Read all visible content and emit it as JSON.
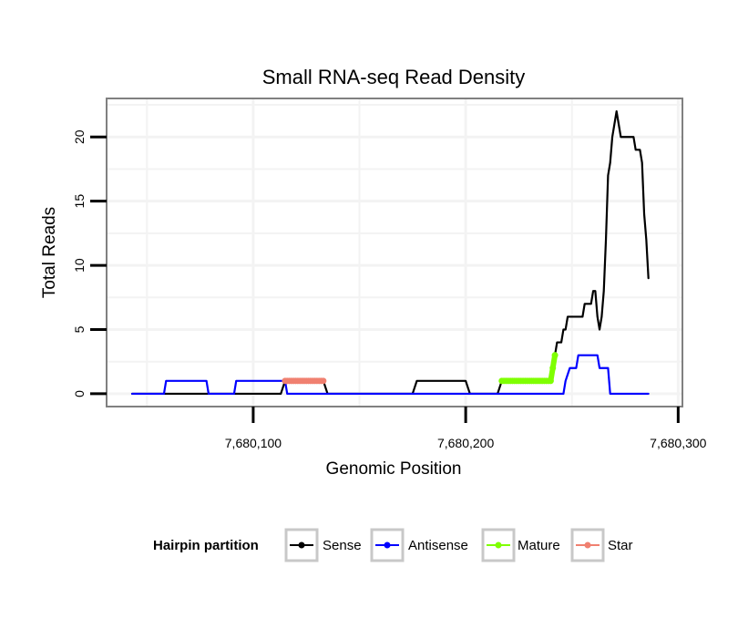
{
  "chart_data": {
    "type": "line",
    "title": "Small RNA-seq Read Density",
    "xlabel": "Genomic Position",
    "ylabel": "Total Reads",
    "xlim": [
      7680031,
      7680302
    ],
    "ylim": [
      -1,
      23
    ],
    "x_ticks": [
      7680100,
      7680200,
      7680300
    ],
    "x_tick_labels": [
      "7,680,100",
      "7,680,200",
      "7,680,300"
    ],
    "y_ticks": [
      0,
      5,
      10,
      15,
      20
    ],
    "y_tick_labels": [
      "0",
      "5",
      "10",
      "15",
      "20"
    ],
    "grid": true,
    "legend": {
      "title": "Hairpin partition",
      "position": "bottom",
      "entries": [
        "Sense",
        "Antisense",
        "Mature",
        "Star"
      ]
    },
    "series": [
      {
        "name": "Sense",
        "color": "#000000",
        "points": [
          [
            7680043,
            0
          ],
          [
            7680113,
            0
          ],
          [
            7680115,
            1
          ],
          [
            7680133,
            1
          ],
          [
            7680135,
            0
          ],
          [
            7680175,
            0
          ],
          [
            7680177,
            1
          ],
          [
            7680200,
            1
          ],
          [
            7680202,
            0
          ],
          [
            7680215,
            0
          ],
          [
            7680217,
            1
          ],
          [
            7680240,
            1
          ],
          [
            7680241,
            2
          ],
          [
            7680242,
            3
          ],
          [
            7680243,
            4
          ],
          [
            7680245,
            4
          ],
          [
            7680246,
            5
          ],
          [
            7680247,
            5
          ],
          [
            7680248,
            6
          ],
          [
            7680255,
            6
          ],
          [
            7680256,
            7
          ],
          [
            7680259,
            7
          ],
          [
            7680260,
            8
          ],
          [
            7680261,
            8
          ],
          [
            7680262,
            6
          ],
          [
            7680263,
            5
          ],
          [
            7680264,
            6
          ],
          [
            7680265,
            8
          ],
          [
            7680266,
            12
          ],
          [
            7680267,
            17
          ],
          [
            7680268,
            18
          ],
          [
            7680269,
            20
          ],
          [
            7680270,
            21
          ],
          [
            7680271,
            22
          ],
          [
            7680272,
            21
          ],
          [
            7680273,
            20
          ],
          [
            7680279,
            20
          ],
          [
            7680280,
            19
          ],
          [
            7680282,
            19
          ],
          [
            7680283,
            18
          ],
          [
            7680284,
            14
          ],
          [
            7680285,
            12
          ],
          [
            7680286,
            9
          ]
        ]
      },
      {
        "name": "Antisense",
        "color": "#0000ff",
        "points": [
          [
            7680043,
            0
          ],
          [
            7680058,
            0
          ],
          [
            7680059,
            1
          ],
          [
            7680078,
            1
          ],
          [
            7680079,
            0
          ],
          [
            7680091,
            0
          ],
          [
            7680092,
            1
          ],
          [
            7680115,
            1
          ],
          [
            7680116,
            0
          ],
          [
            7680246,
            0
          ],
          [
            7680247,
            1
          ],
          [
            7680249,
            2
          ],
          [
            7680252,
            2
          ],
          [
            7680253,
            3
          ],
          [
            7680262,
            3
          ],
          [
            7680263,
            2
          ],
          [
            7680267,
            2
          ],
          [
            7680268,
            0
          ],
          [
            7680286,
            0
          ]
        ]
      },
      {
        "name": "Mature",
        "color": "#7fff00",
        "points": [
          [
            7680217,
            1
          ],
          [
            7680218,
            1
          ],
          [
            7680219,
            1
          ],
          [
            7680220,
            1
          ],
          [
            7680221,
            1
          ],
          [
            7680222,
            1
          ],
          [
            7680223,
            1
          ],
          [
            7680224,
            1
          ],
          [
            7680225,
            1
          ],
          [
            7680226,
            1
          ],
          [
            7680227,
            1
          ],
          [
            7680228,
            1
          ],
          [
            7680229,
            1
          ],
          [
            7680230,
            1
          ],
          [
            7680231,
            1
          ],
          [
            7680232,
            1
          ],
          [
            7680233,
            1
          ],
          [
            7680234,
            1
          ],
          [
            7680235,
            1
          ],
          [
            7680236,
            1
          ],
          [
            7680237,
            1
          ],
          [
            7680238,
            1
          ],
          [
            7680239,
            1
          ],
          [
            7680240,
            1
          ],
          [
            7680241,
            2
          ],
          [
            7680242,
            3
          ]
        ]
      },
      {
        "name": "Star",
        "color": "#f08070",
        "points": [
          [
            7680115,
            1
          ],
          [
            7680116,
            1
          ],
          [
            7680117,
            1
          ],
          [
            7680118,
            1
          ],
          [
            7680119,
            1
          ],
          [
            7680120,
            1
          ],
          [
            7680121,
            1
          ],
          [
            7680122,
            1
          ],
          [
            7680123,
            1
          ],
          [
            7680124,
            1
          ],
          [
            7680125,
            1
          ],
          [
            7680126,
            1
          ],
          [
            7680127,
            1
          ],
          [
            7680128,
            1
          ],
          [
            7680129,
            1
          ],
          [
            7680130,
            1
          ],
          [
            7680131,
            1
          ],
          [
            7680132,
            1
          ],
          [
            7680133,
            1
          ]
        ]
      }
    ]
  }
}
